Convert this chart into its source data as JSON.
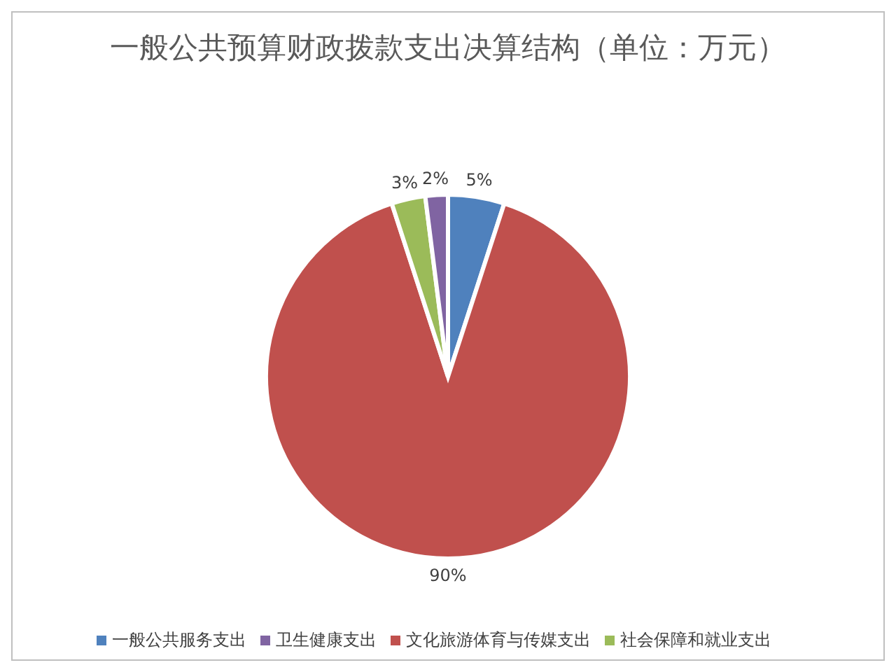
{
  "chart_data": {
    "type": "pie",
    "title": "一般公共预算财政拨款支出决算结构（单位：万元）",
    "categories": [
      "一般公共服务支出",
      "文化旅游体育与传媒支出",
      "社会保障和就业支出",
      "卫生健康支出"
    ],
    "values": [
      5,
      90,
      3,
      2
    ],
    "colors": [
      "#4f81bd",
      "#c0504d",
      "#9bbb59",
      "#8064a2"
    ],
    "value_labels": [
      "5%",
      "90%",
      "3%",
      "2%"
    ],
    "legend": "bottom"
  }
}
